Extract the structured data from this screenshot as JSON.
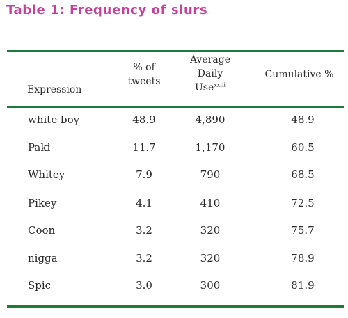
{
  "title": "Table 1: Frequency of slurs",
  "header": {
    "expression": "Expression",
    "pct_line1": "% of",
    "pct_line2": "tweets",
    "avg_line1": "Average",
    "avg_line2": "Daily",
    "avg_line3": "Use",
    "avg_note": "xxiii",
    "cumulative": "Cumulative %"
  },
  "rows": [
    {
      "expression": "white boy",
      "pct": "48.9",
      "avg": "4,890",
      "cum": "48.9"
    },
    {
      "expression": "Paki",
      "pct": "11.7",
      "avg": "1,170",
      "cum": "60.5"
    },
    {
      "expression": "Whitey",
      "pct": "7.9",
      "avg": "790",
      "cum": "68.5"
    },
    {
      "expression": "Pikey",
      "pct": "4.1",
      "avg": "410",
      "cum": "72.5"
    },
    {
      "expression": "Coon",
      "pct": "3.2",
      "avg": "320",
      "cum": "75.7"
    },
    {
      "expression": "nigga",
      "pct": "3.2",
      "avg": "320",
      "cum": "78.9"
    },
    {
      "expression": "Spic",
      "pct": "3.0",
      "avg": "300",
      "cum": "81.9"
    }
  ],
  "colors": {
    "title": "#c0459a",
    "rule": "#1e7a3d",
    "text": "#2a2a2a"
  }
}
